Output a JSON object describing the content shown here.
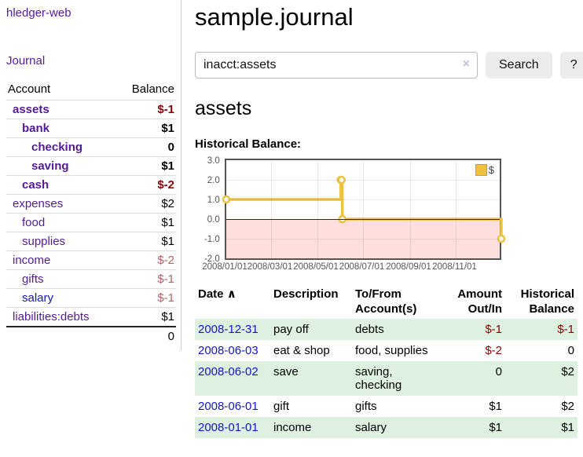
{
  "app": {
    "brand": "hledger-web"
  },
  "sidebar": {
    "journal_link": "Journal",
    "accounts": {
      "headers": {
        "account": "Account",
        "balance": "Balance"
      },
      "rows": [
        {
          "name": "assets",
          "depth": 1,
          "balance": "$-1",
          "bold": true,
          "neg": "strong",
          "link": "purple"
        },
        {
          "name": "bank",
          "depth": 2,
          "balance": "$1",
          "bold": true,
          "neg": "none",
          "link": "purple"
        },
        {
          "name": "checking",
          "depth": 3,
          "balance": "0",
          "bold": true,
          "neg": "none",
          "link": "purple"
        },
        {
          "name": "saving",
          "depth": 3,
          "balance": "$1",
          "bold": true,
          "neg": "none",
          "link": "purple"
        },
        {
          "name": "cash",
          "depth": 2,
          "balance": "$-2",
          "bold": true,
          "neg": "strong",
          "link": "purple"
        },
        {
          "name": "expenses",
          "depth": 1,
          "balance": "$2",
          "bold": false,
          "neg": "none",
          "link": "purple"
        },
        {
          "name": "food",
          "depth": 2,
          "balance": "$1",
          "bold": false,
          "neg": "none",
          "link": "purple"
        },
        {
          "name": "supplies",
          "depth": 2,
          "balance": "$1",
          "bold": false,
          "neg": "none",
          "link": "purple"
        },
        {
          "name": "income",
          "depth": 1,
          "balance": "$-2",
          "bold": false,
          "neg": "soft",
          "link": "purple"
        },
        {
          "name": "gifts",
          "depth": 2,
          "balance": "$-1",
          "bold": false,
          "neg": "soft",
          "link": "purple"
        },
        {
          "name": "salary",
          "depth": 2,
          "balance": "$-1",
          "bold": false,
          "neg": "soft",
          "link": "blue"
        },
        {
          "name": "liabilities:debts",
          "depth": 1,
          "balance": "$1",
          "bold": false,
          "neg": "none",
          "link": "purple"
        }
      ],
      "total": "0"
    }
  },
  "main": {
    "title": "sample.journal",
    "search": {
      "value": "inacct:assets",
      "clear_icon": "×",
      "search_button": "Search",
      "help_button": "?"
    },
    "account_heading": "assets",
    "chart_title": "Historical Balance:"
  },
  "chart_data": {
    "type": "line",
    "title": "Historical Balance:",
    "step": true,
    "series": [
      {
        "name": "$",
        "color": "#edc240",
        "points": [
          [
            "2008-01-01",
            1
          ],
          [
            "2008-06-01",
            2
          ],
          [
            "2008-06-02",
            2
          ],
          [
            "2008-06-03",
            0
          ],
          [
            "2008-12-31",
            -1
          ]
        ]
      }
    ],
    "ylim": [
      -2,
      3
    ],
    "yticks": [
      {
        "label": "3.0",
        "value": 3
      },
      {
        "label": "2.0",
        "value": 2
      },
      {
        "label": "1.0",
        "value": 1
      },
      {
        "label": "0.0",
        "value": 0
      },
      {
        "label": "-1.0",
        "value": -1
      },
      {
        "label": "-2.0",
        "value": -2
      }
    ],
    "xticks": [
      {
        "label": "2008/01/01",
        "date": "2008-01-01"
      },
      {
        "label": "2008/03/01",
        "date": "2008-03-01"
      },
      {
        "label": "2008/05/01",
        "date": "2008-05-01"
      },
      {
        "label": "2008/07/01",
        "date": "2008-07-01"
      },
      {
        "label": "2008/09/01",
        "date": "2008-09-01"
      },
      {
        "label": "2008/11/01",
        "date": "2008-11-01"
      }
    ],
    "xrange": [
      "2008-01-01",
      "2008-12-31"
    ],
    "legend": {
      "position": "top-right",
      "label": "$"
    },
    "grid": true,
    "negative_region_color": "#ffdede",
    "zero_line_color": "#8b0000"
  },
  "register": {
    "headers": {
      "date": "Date",
      "sort_indicator": "∧",
      "description": "Description",
      "tofrom_line1": "To/From",
      "tofrom_line2": "Account(s)",
      "amount_line1": "Amount",
      "amount_line2": "Out/In",
      "balance_line1": "Historical",
      "balance_line2": "Balance"
    },
    "rows": [
      {
        "date": "2008-12-31",
        "description": "pay off",
        "accounts": "debts",
        "amount": "$-1",
        "balance": "$-1",
        "amount_neg": true,
        "balance_neg": true
      },
      {
        "date": "2008-06-03",
        "description": "eat & shop",
        "accounts": "food, supplies",
        "amount": "$-2",
        "balance": "0",
        "amount_neg": true,
        "balance_neg": false
      },
      {
        "date": "2008-06-02",
        "description": "save",
        "accounts": "saving, checking",
        "amount": "0",
        "balance": "$2",
        "amount_neg": false,
        "balance_neg": false
      },
      {
        "date": "2008-06-01",
        "description": "gift",
        "accounts": "gifts",
        "amount": "$1",
        "balance": "$2",
        "amount_neg": false,
        "balance_neg": false
      },
      {
        "date": "2008-01-01",
        "description": "income",
        "accounts": "salary",
        "amount": "$1",
        "balance": "$1",
        "amount_neg": false,
        "balance_neg": false
      }
    ]
  },
  "colors": {
    "link_purple": "#551a9b",
    "link_blue": "#1414cc",
    "neg_strong": "#8f0000",
    "neg_soft": "#b85f5f",
    "row_stripe_green": "#def0df",
    "chart_line": "#edc240"
  }
}
